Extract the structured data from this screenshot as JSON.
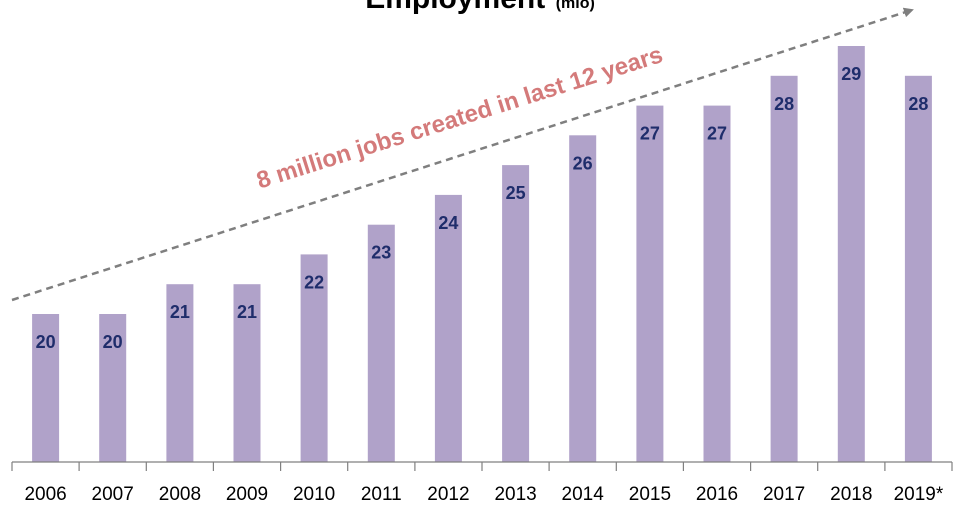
{
  "chart_data": {
    "type": "bar",
    "title": "Employment",
    "title_unit": "(mio)",
    "categories": [
      "2006",
      "2007",
      "2008",
      "2009",
      "2010",
      "2011",
      "2012",
      "2013",
      "2014",
      "2015",
      "2016",
      "2017",
      "2018",
      "2019*"
    ],
    "values": [
      20,
      20,
      21,
      21,
      22,
      23,
      24,
      25,
      26,
      27,
      27,
      28,
      29,
      28
    ],
    "bar_color": "#b0a2c9",
    "label_color": "#1f2d6b",
    "annotation": {
      "text": "8 million jobs created in last 12 years",
      "color": "#d47a7a",
      "arrow_color": "#7f7f7f"
    },
    "grid": false,
    "legend": "none"
  }
}
